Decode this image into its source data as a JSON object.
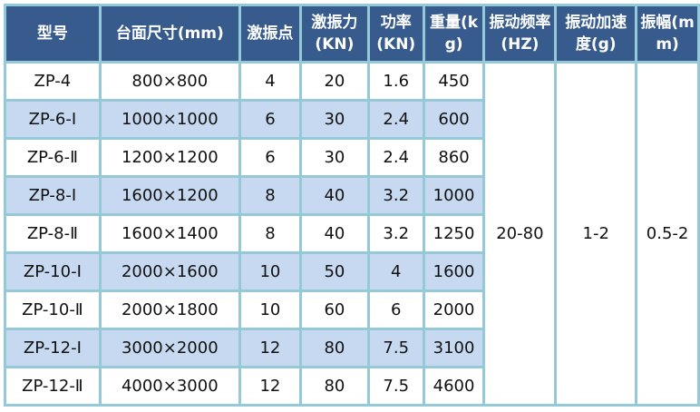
{
  "headers": [
    "型号",
    "台面尺寸(mm)",
    "激振点",
    "激振力(KN)",
    "功率(KN)",
    "重量(kg)",
    "振动频率(HZ)",
    "振动加速度(g)",
    "振幅(mm)"
  ],
  "rows": [
    [
      "ZP-4",
      "800×800",
      "4",
      "20",
      "1.6",
      "450"
    ],
    [
      "ZP-6-Ⅰ",
      "1000×1000",
      "6",
      "30",
      "2.4",
      "600"
    ],
    [
      "ZP-6-Ⅱ",
      "1200×1200",
      "6",
      "30",
      "2.4",
      "860"
    ],
    [
      "ZP-8-Ⅰ",
      "1600×1200",
      "8",
      "40",
      "3.2",
      "1000"
    ],
    [
      "ZP-8-Ⅱ",
      "1600×1400",
      "8",
      "40",
      "3.2",
      "1250"
    ],
    [
      "ZP-10-Ⅰ",
      "2000×1600",
      "10",
      "50",
      "4",
      "1600"
    ],
    [
      "ZP-10-Ⅱ",
      "2000×1800",
      "10",
      "60",
      "6",
      "2000"
    ],
    [
      "ZP-12-Ⅰ",
      "3000×2000",
      "12",
      "80",
      "7.5",
      "3100"
    ],
    [
      "ZP-12-Ⅱ",
      "4000×3000",
      "12",
      "80",
      "7.5",
      "4600"
    ]
  ],
  "shared": {
    "frequency": "20-80",
    "acceleration": "1-2",
    "amplitude": "0.5-2"
  },
  "colors": {
    "header_bg": "#375b8c",
    "border": "#95c9d8",
    "alt_row": "#c6d9f0"
  }
}
